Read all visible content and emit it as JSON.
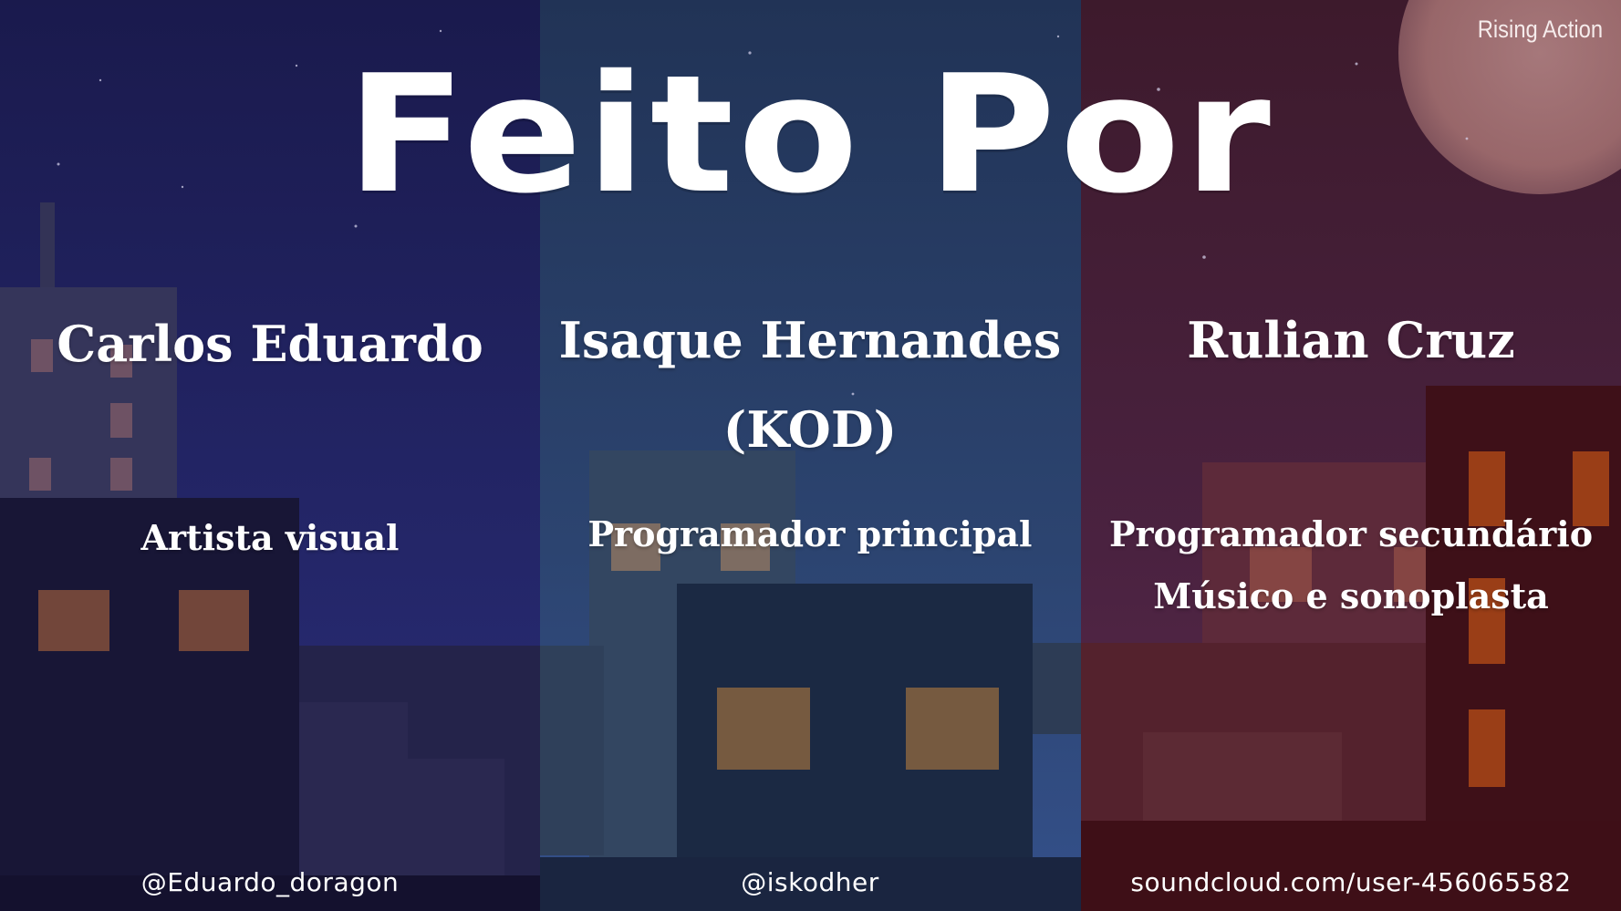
{
  "screen": {
    "title": "Feito Por",
    "tag": "Rising Action"
  },
  "credits": [
    {
      "name_lines": [
        "Carlos Eduardo"
      ],
      "role_lines": [
        "Artista visual"
      ],
      "handle": "@Eduardo_doragon"
    },
    {
      "name_lines": [
        "Isaque Hernandes",
        "(KOD)"
      ],
      "role_lines": [
        "Programador principal"
      ],
      "handle": "@iskodher"
    },
    {
      "name_lines": [
        "Rulian Cruz"
      ],
      "role_lines": [
        "Programador secundário",
        "Músico e sonoplasta"
      ],
      "handle": "soundcloud.com/user-456065582"
    }
  ],
  "colors": {
    "panel_left": "#232566",
    "panel_middle": "#2c4470",
    "panel_right": "#4a2240",
    "moon": "#b57f7f",
    "window_light": "#74563f",
    "window_orange": "#9a3e17"
  }
}
